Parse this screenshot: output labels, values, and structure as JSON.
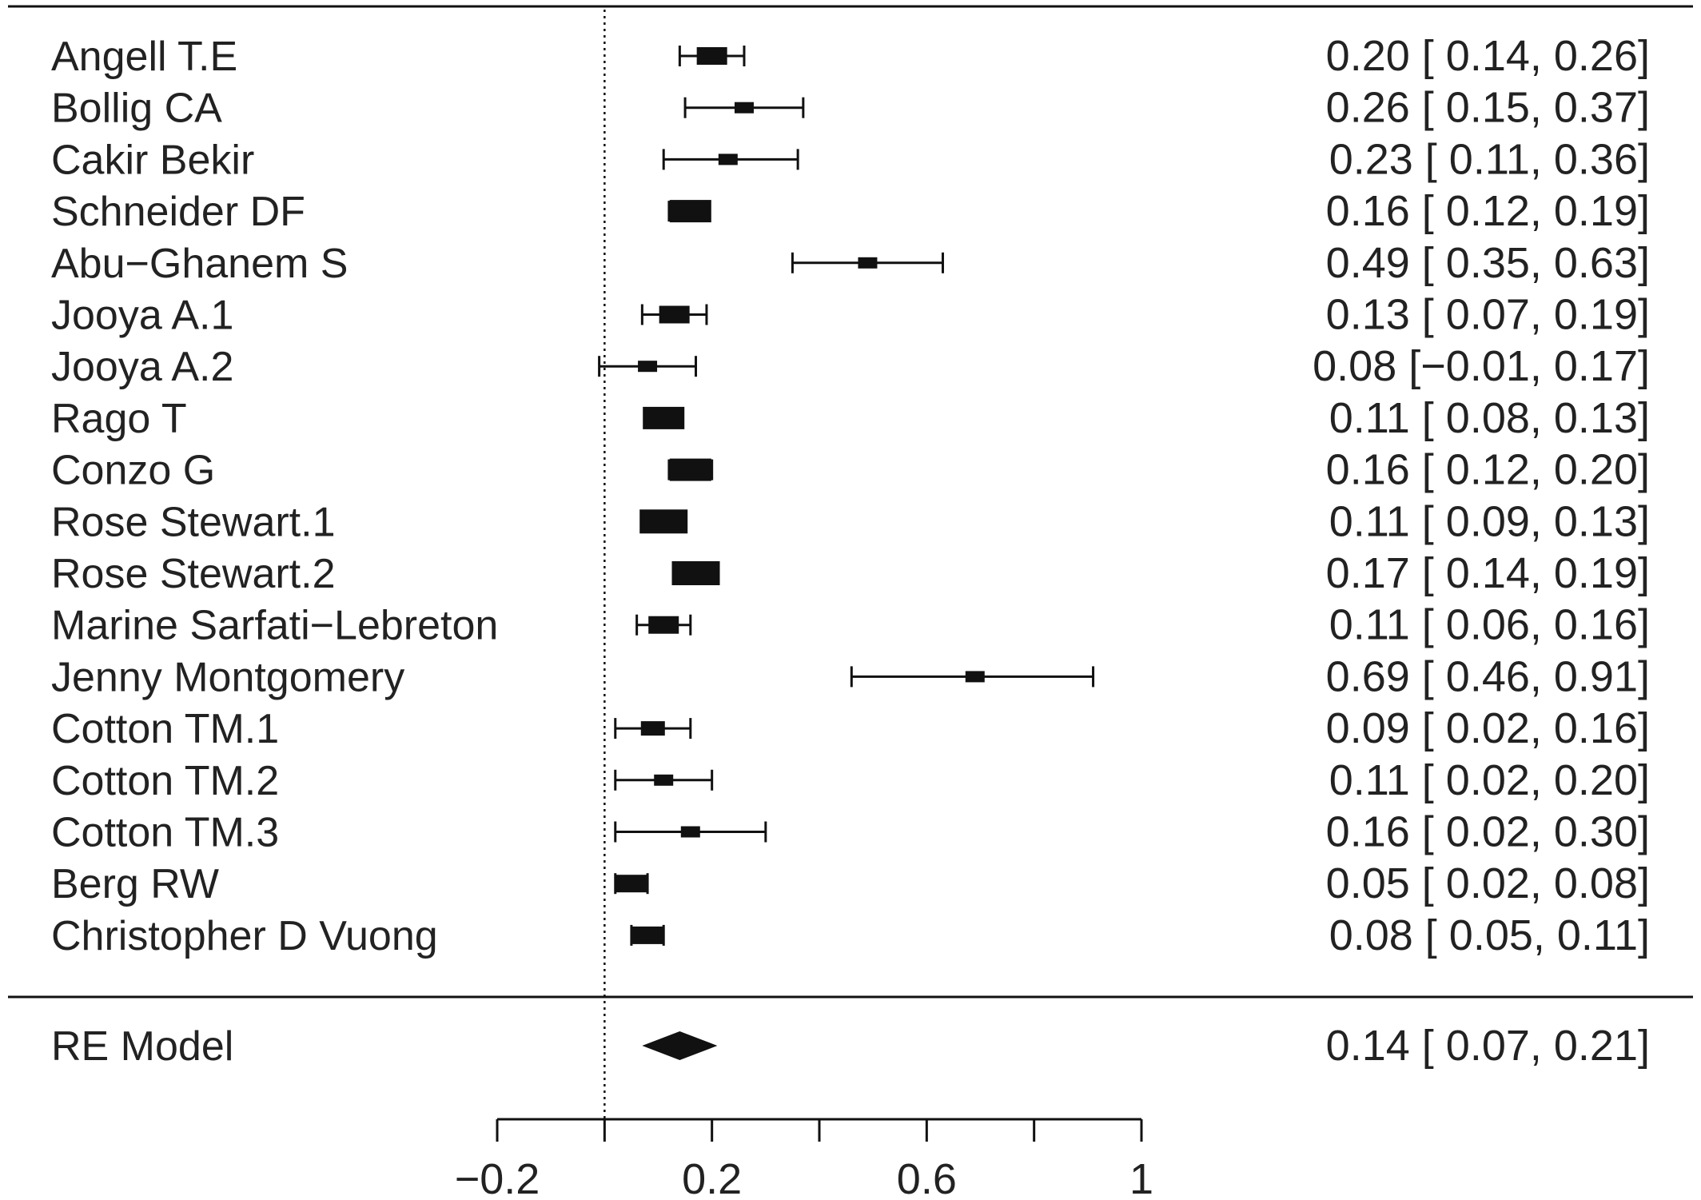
{
  "chart_data": {
    "type": "forest",
    "studies": [
      {
        "label": "Angell T.E",
        "estimate": 0.2,
        "lower": 0.14,
        "upper": 0.26,
        "ci_text": "0.20 [ 0.14, 0.26]",
        "weight_rank": 3
      },
      {
        "label": "Bollig CA",
        "estimate": 0.26,
        "lower": 0.15,
        "upper": 0.37,
        "ci_text": "0.26 [ 0.15, 0.37]",
        "weight_rank": 1
      },
      {
        "label": "Cakir Bekir",
        "estimate": 0.23,
        "lower": 0.11,
        "upper": 0.36,
        "ci_text": "0.23 [ 0.11, 0.36]",
        "weight_rank": 1
      },
      {
        "label": "Schneider DF",
        "estimate": 0.16,
        "lower": 0.12,
        "upper": 0.19,
        "ci_text": "0.16 [ 0.12, 0.19]",
        "weight_rank": 4
      },
      {
        "label": "Abu−Ghanem S",
        "estimate": 0.49,
        "lower": 0.35,
        "upper": 0.63,
        "ci_text": "0.49 [ 0.35, 0.63]",
        "weight_rank": 1
      },
      {
        "label": "Jooya A.1",
        "estimate": 0.13,
        "lower": 0.07,
        "upper": 0.19,
        "ci_text": "0.13 [ 0.07, 0.19]",
        "weight_rank": 3
      },
      {
        "label": "Jooya A.2",
        "estimate": 0.08,
        "lower": -0.01,
        "upper": 0.17,
        "ci_text": "0.08 [−0.01, 0.17]",
        "weight_rank": 1
      },
      {
        "label": "Rago T",
        "estimate": 0.11,
        "lower": 0.08,
        "upper": 0.13,
        "ci_text": "0.11 [ 0.08, 0.13]",
        "weight_rank": 4
      },
      {
        "label": "Conzo G",
        "estimate": 0.16,
        "lower": 0.12,
        "upper": 0.2,
        "ci_text": "0.16 [ 0.12, 0.20]",
        "weight_rank": 4
      },
      {
        "label": "Rose Stewart.1",
        "estimate": 0.11,
        "lower": 0.09,
        "upper": 0.13,
        "ci_text": "0.11 [ 0.09, 0.13]",
        "weight_rank": 5
      },
      {
        "label": "Rose Stewart.2",
        "estimate": 0.17,
        "lower": 0.14,
        "upper": 0.19,
        "ci_text": "0.17 [ 0.14, 0.19]",
        "weight_rank": 5
      },
      {
        "label": "Marine Sarfati−Lebreton",
        "estimate": 0.11,
        "lower": 0.06,
        "upper": 0.16,
        "ci_text": "0.11 [ 0.06, 0.16]",
        "weight_rank": 3
      },
      {
        "label": "Jenny Montgomery",
        "estimate": 0.69,
        "lower": 0.46,
        "upper": 0.91,
        "ci_text": "0.69 [ 0.46, 0.91]",
        "weight_rank": 1
      },
      {
        "label": "Cotton TM.1",
        "estimate": 0.09,
        "lower": 0.02,
        "upper": 0.16,
        "ci_text": "0.09 [ 0.02, 0.16]",
        "weight_rank": 2
      },
      {
        "label": "Cotton TM.2",
        "estimate": 0.11,
        "lower": 0.02,
        "upper": 0.2,
        "ci_text": "0.11 [ 0.02, 0.20]",
        "weight_rank": 1
      },
      {
        "label": "Cotton TM.3",
        "estimate": 0.16,
        "lower": 0.02,
        "upper": 0.3,
        "ci_text": "0.16 [ 0.02, 0.30]",
        "weight_rank": 1
      },
      {
        "label": "Berg RW",
        "estimate": 0.05,
        "lower": 0.02,
        "upper": 0.08,
        "ci_text": "0.05 [ 0.02, 0.08]",
        "weight_rank": 3
      },
      {
        "label": "Christopher D Vuong",
        "estimate": 0.08,
        "lower": 0.05,
        "upper": 0.11,
        "ci_text": "0.08 [ 0.05, 0.11]",
        "weight_rank": 3
      }
    ],
    "summary": {
      "label": "RE Model",
      "estimate": 0.14,
      "lower": 0.07,
      "upper": 0.21,
      "ci_text": "0.14 [ 0.07, 0.21]"
    },
    "x_ticks": [
      -0.2,
      0,
      0.2,
      0.4,
      0.6,
      0.8,
      1
    ],
    "x_tick_labels": [
      "−0.2",
      "",
      "0.2",
      "",
      "0.6",
      "",
      "1"
    ],
    "xlim": [
      -0.2,
      1
    ],
    "reference_line": 0,
    "colors": {
      "ink": "#111111",
      "text": "#222222"
    }
  }
}
